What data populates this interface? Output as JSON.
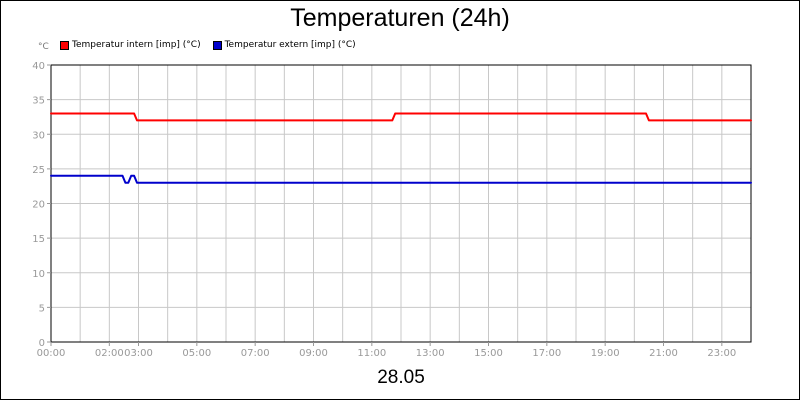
{
  "chart_data": {
    "type": "line",
    "title": "Temperaturen (24h)",
    "ylabel": "°C",
    "xlabel": "28.05",
    "ylim": [
      0,
      40
    ],
    "yticks": [
      0,
      5,
      10,
      15,
      20,
      25,
      30,
      35,
      40
    ],
    "xlim_hours": [
      0,
      24
    ],
    "xticks": [
      {
        "hour": 0,
        "label": "00:00"
      },
      {
        "hour": 2,
        "label": "02:00"
      },
      {
        "hour": 3,
        "label": "03:00"
      },
      {
        "hour": 5,
        "label": "05:00"
      },
      {
        "hour": 7,
        "label": "07:00"
      },
      {
        "hour": 9,
        "label": "09:00"
      },
      {
        "hour": 11,
        "label": "11:00"
      },
      {
        "hour": 13,
        "label": "13:00"
      },
      {
        "hour": 15,
        "label": "15:00"
      },
      {
        "hour": 17,
        "label": "17:00"
      },
      {
        "hour": 19,
        "label": "19:00"
      },
      {
        "hour": 21,
        "label": "21:00"
      },
      {
        "hour": 23,
        "label": "23:00"
      }
    ],
    "grid": true,
    "legend_position": "top-left",
    "series": [
      {
        "name": "Temperatur intern [imp] (°C)",
        "color": "#ff0000",
        "x": [
          0,
          2.85,
          2.95,
          11.7,
          11.8,
          20.4,
          20.5,
          24
        ],
        "y": [
          33,
          33,
          32,
          32,
          33,
          33,
          32,
          32
        ]
      },
      {
        "name": "Temperatur extern [imp] (°C)",
        "color": "#0000cc",
        "x": [
          0,
          2.45,
          2.55,
          2.65,
          2.75,
          2.85,
          2.95,
          24
        ],
        "y": [
          24,
          24,
          23,
          23,
          24,
          24,
          23,
          23
        ]
      }
    ]
  }
}
